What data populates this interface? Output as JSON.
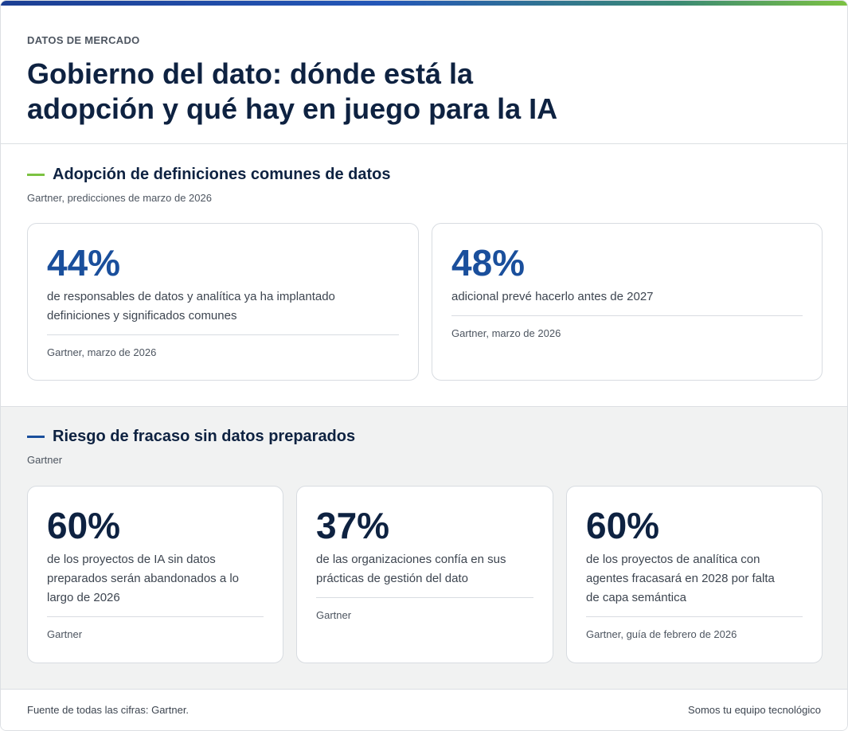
{
  "colors": {
    "accent_blue": "#1a4f9c",
    "navy": "#0e2241",
    "accent_green": "#7cc242"
  },
  "header": {
    "eyebrow": "DATOS DE MERCADO",
    "title_line1": "Gobierno del dato: dónde está la",
    "title_line2": "adopción y qué hay en juego para la IA"
  },
  "section1": {
    "title": "Adopción de definiciones comunes de datos",
    "subtitle": "Gartner, predicciones de marzo de 2026",
    "stats": [
      {
        "value": "44%",
        "desc_line1": "de responsables de datos y analítica ya ha implantado",
        "desc_line2": "definiciones y significados comunes",
        "source": "Gartner, marzo de 2026"
      },
      {
        "value": "48%",
        "desc_line1": "adicional prevé hacerlo antes de 2027",
        "source": "Gartner, marzo de 2026"
      }
    ]
  },
  "section2": {
    "title": "Riesgo de fracaso sin datos preparados",
    "subtitle": "Gartner",
    "stats": [
      {
        "value": "60%",
        "desc_line1": "de los proyectos de IA sin datos",
        "desc_line2": "preparados serán abandonados a lo",
        "desc_line3": "largo de 2026",
        "source": "Gartner"
      },
      {
        "value": "37%",
        "desc_line1": "de las organizaciones confía en sus",
        "desc_line2": "prácticas de gestión del dato",
        "source": "Gartner"
      },
      {
        "value": "60%",
        "desc_line1": "de los proyectos de analítica con",
        "desc_line2": "agentes fracasará en 2028 por falta",
        "desc_line3": "de capa semántica",
        "source": "Gartner, guía de febrero de 2026"
      }
    ]
  },
  "footer": {
    "note": "Fuente de todas las cifras: Gartner.",
    "tagline": "Somos tu equipo tecnológico"
  }
}
